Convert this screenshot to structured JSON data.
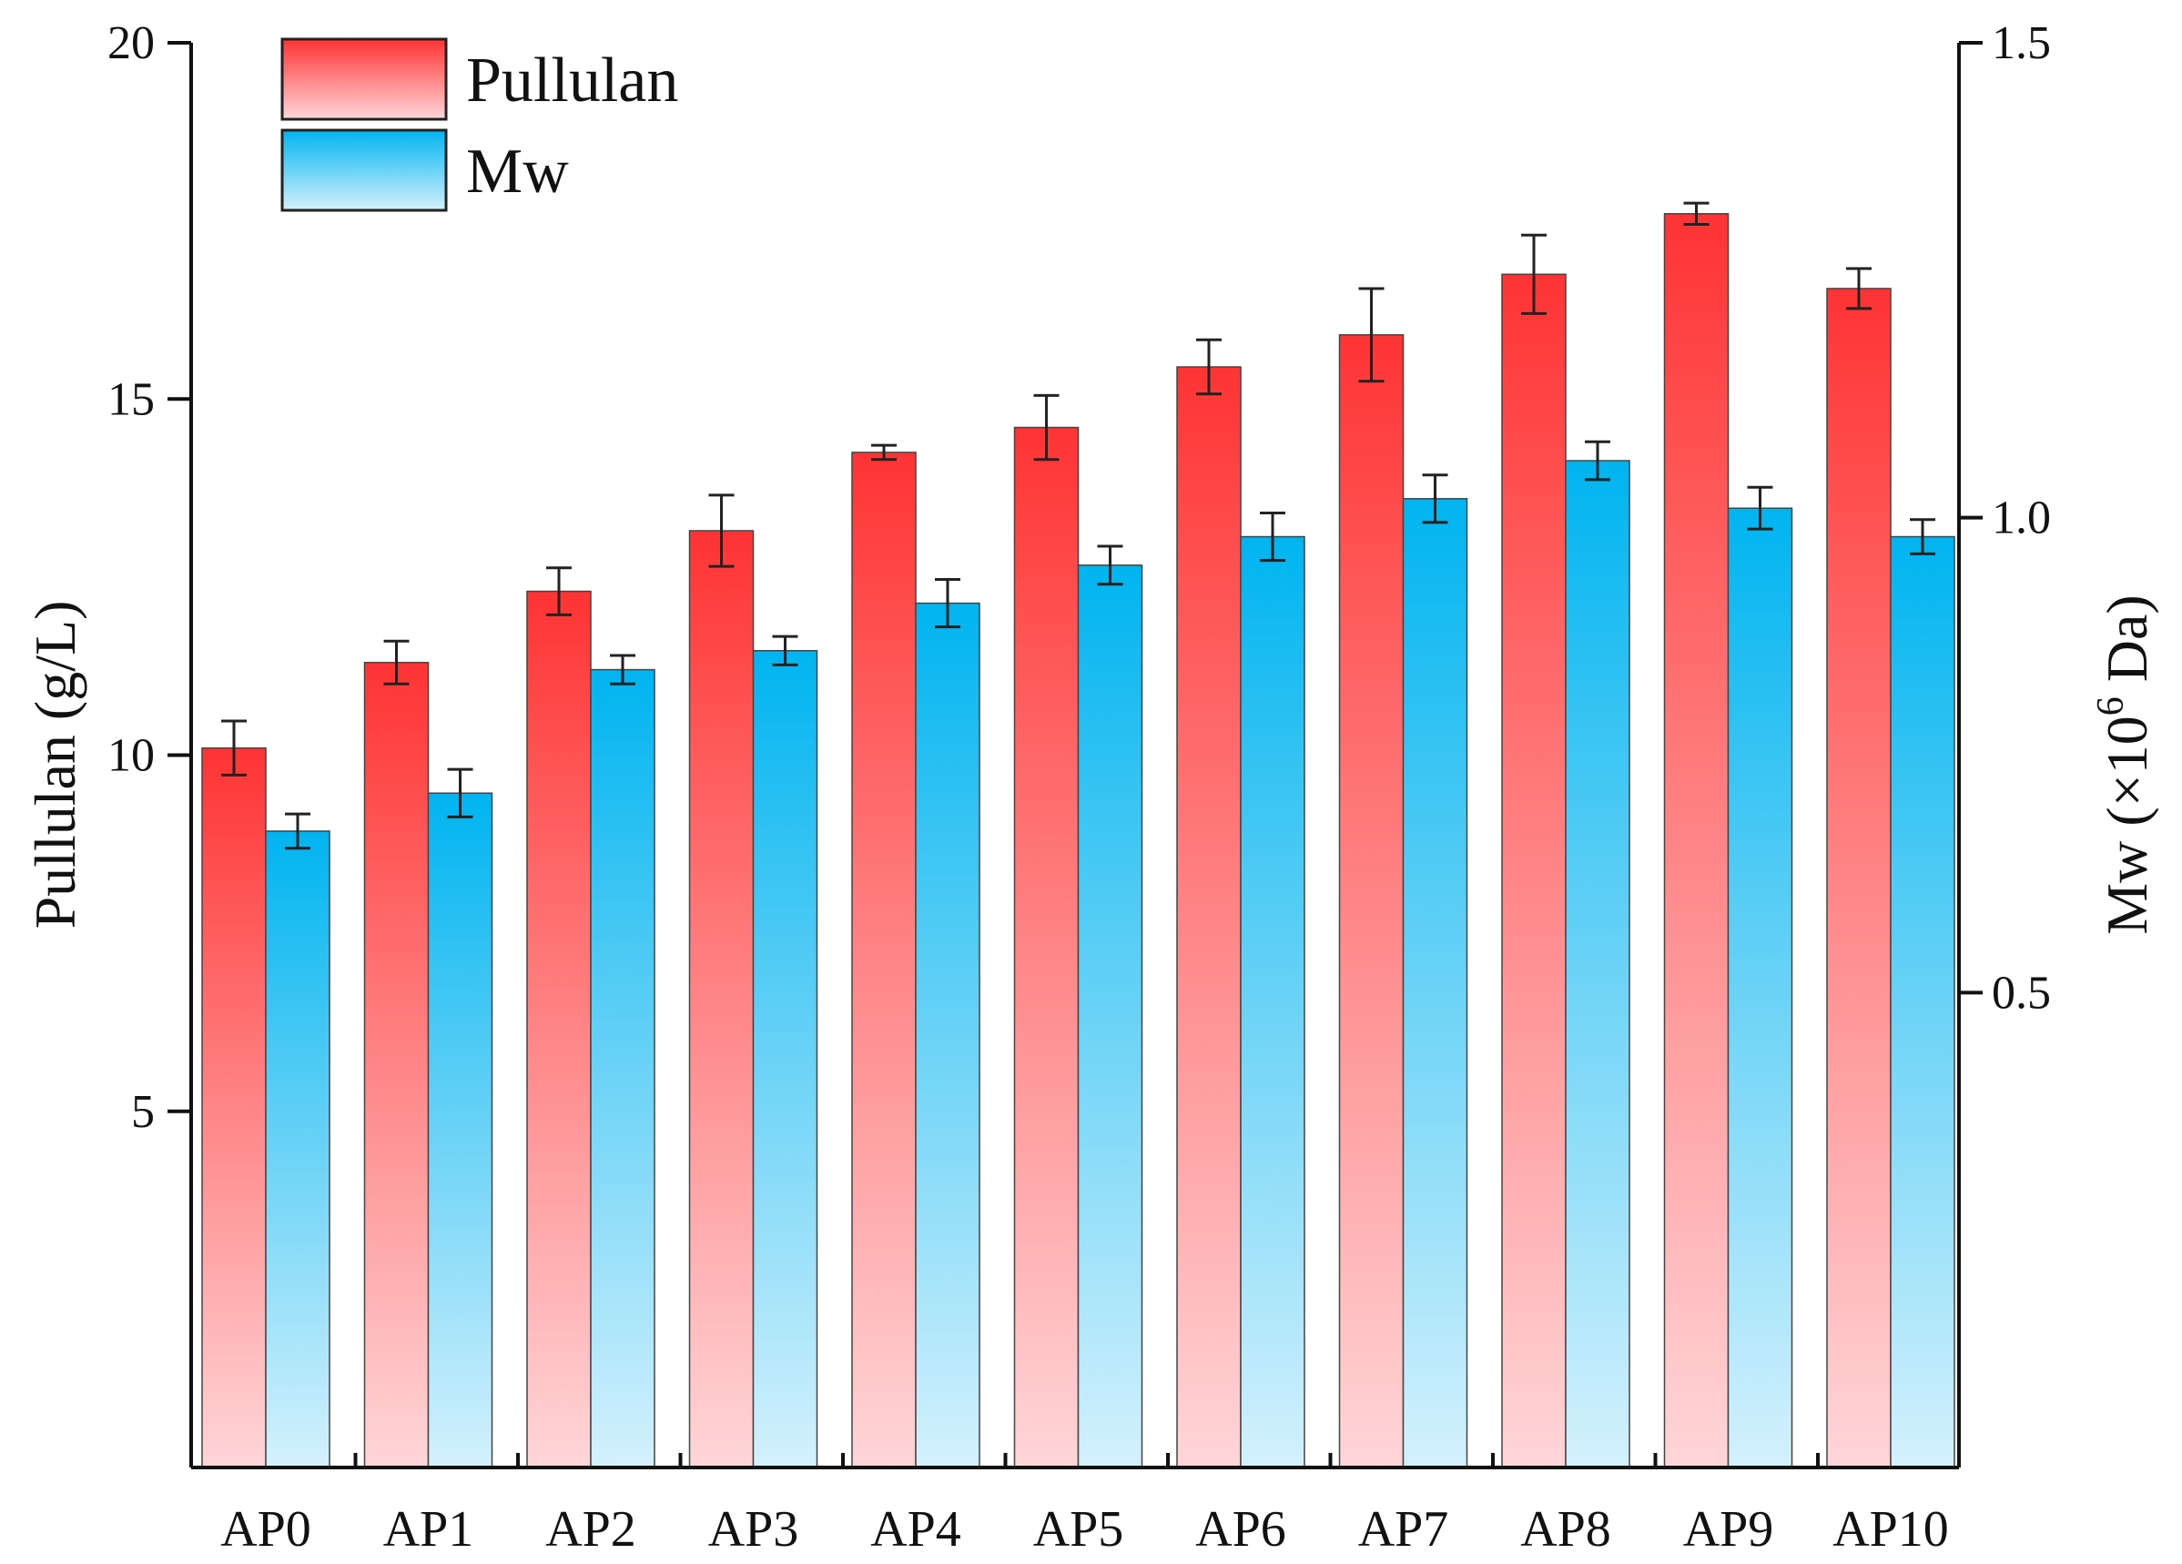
{
  "chart_data": {
    "type": "bar",
    "categories": [
      "AP0",
      "AP1",
      "AP2",
      "AP3",
      "AP4",
      "AP5",
      "AP6",
      "AP7",
      "AP8",
      "AP9",
      "AP10"
    ],
    "series": [
      {
        "name": "Pullulan",
        "axis": "left",
        "values": [
          10.1,
          11.3,
          12.3,
          13.15,
          14.25,
          14.6,
          15.45,
          15.9,
          16.75,
          17.6,
          16.55
        ],
        "errors": [
          0.38,
          0.3,
          0.33,
          0.5,
          0.1,
          0.45,
          0.38,
          0.65,
          0.55,
          0.15,
          0.28
        ],
        "color_top": "#ff3333",
        "color_bottom": "#ffd6d9"
      },
      {
        "name": "Mw",
        "axis": "right",
        "values": [
          0.67,
          0.71,
          0.84,
          0.86,
          0.91,
          0.95,
          0.98,
          1.02,
          1.06,
          1.01,
          0.98
        ],
        "errors": [
          0.018,
          0.025,
          0.015,
          0.015,
          0.025,
          0.02,
          0.025,
          0.025,
          0.02,
          0.022,
          0.018
        ],
        "color_top": "#00b4f0",
        "color_bottom": "#d4f1fd"
      }
    ],
    "ylabel": "Pullulan (g/L)",
    "ylim": [
      0,
      20
    ],
    "yticks": [
      "5",
      "10",
      "15",
      "20"
    ],
    "y2label": "Mw (×10",
    "y2label_sup": "6",
    "y2label_tail": " Da)",
    "y2lim": [
      0,
      1.5
    ],
    "y2ticks": [
      "0.5",
      "1.0",
      "1.5"
    ],
    "xlabel": "",
    "legend": [
      "Pullulan",
      "Mw"
    ],
    "legend_position": "top-left",
    "grid": false
  }
}
